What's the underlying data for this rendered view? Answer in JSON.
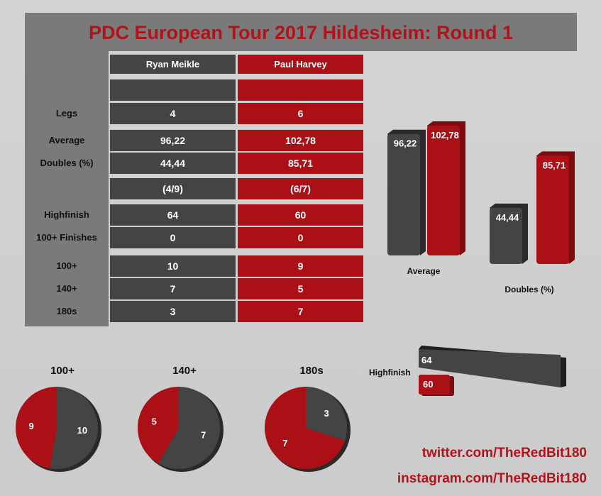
{
  "title": "PDC European Tour 2017 Hildesheim: Round 1",
  "players": [
    "Ryan Meikle",
    "Paul Harvey"
  ],
  "colors": {
    "player1": "#444444",
    "player2": "#aa1016",
    "title": "#b3121a"
  },
  "table": {
    "rows": [
      {
        "label": "",
        "p1": "",
        "p2": ""
      },
      {
        "label": "Legs",
        "p1": "4",
        "p2": "6"
      },
      {
        "label": "Average",
        "p1": "96,22",
        "p2": "102,78"
      },
      {
        "label": "Doubles (%)",
        "p1": "44,44",
        "p2": "85,71"
      },
      {
        "label": "",
        "p1": "(4/9)",
        "p2": "(6/7)"
      },
      {
        "label": "Highfinish",
        "p1": "64",
        "p2": "60"
      },
      {
        "label": "100+ Finishes",
        "p1": "0",
        "p2": "0"
      },
      {
        "label": "100+",
        "p1": "10",
        "p2": "9"
      },
      {
        "label": "140+",
        "p1": "7",
        "p2": "5"
      },
      {
        "label": "180s",
        "p1": "3",
        "p2": "7"
      }
    ]
  },
  "chart_data": [
    {
      "type": "bar",
      "categories": [
        "Average",
        "Doubles (%)"
      ],
      "series": [
        {
          "name": "Ryan Meikle",
          "values": [
            96.22,
            44.44
          ],
          "labels": [
            "96,22",
            "44,44"
          ]
        },
        {
          "name": "Paul Harvey",
          "values": [
            102.78,
            85.71
          ],
          "labels": [
            "102,78",
            "85,71"
          ]
        }
      ]
    },
    {
      "type": "bar",
      "orientation": "horizontal",
      "title": "Highfinish",
      "series": [
        {
          "name": "Ryan Meikle",
          "values": [
            64
          ],
          "labels": [
            "64"
          ]
        },
        {
          "name": "Paul Harvey",
          "values": [
            60
          ],
          "labels": [
            "60"
          ]
        }
      ]
    },
    {
      "type": "pie",
      "title": "100+",
      "values": [
        10,
        9
      ],
      "labels": [
        "10",
        "9"
      ]
    },
    {
      "type": "pie",
      "title": "140+",
      "values": [
        7,
        5
      ],
      "labels": [
        "7",
        "5"
      ]
    },
    {
      "type": "pie",
      "title": "180s",
      "values": [
        3,
        7
      ],
      "labels": [
        "3",
        "7"
      ]
    }
  ],
  "social": {
    "twitter": "twitter.com/TheRedBit180",
    "instagram": "instagram.com/TheRedBit180"
  }
}
